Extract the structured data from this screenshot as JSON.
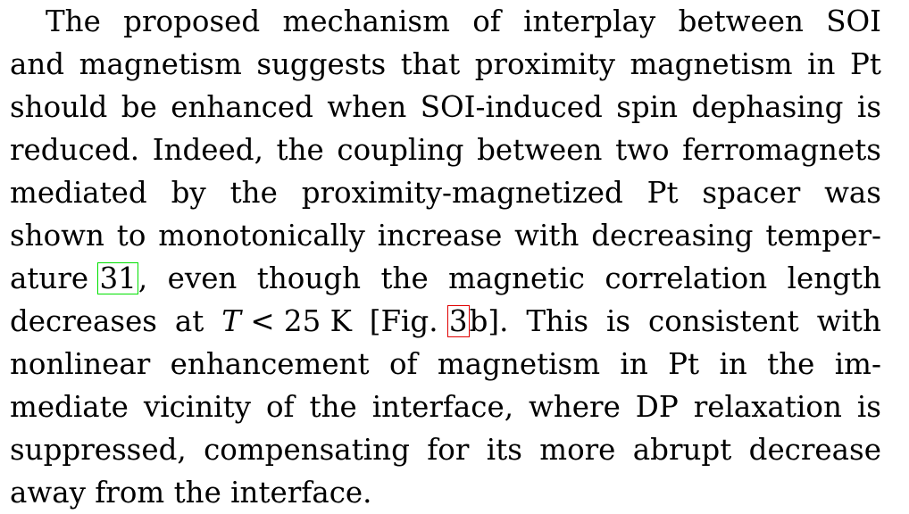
{
  "paragraph": {
    "lines": [
      [
        "The",
        "proposed",
        "mechanism",
        "of",
        "interplay",
        "between",
        "SOI"
      ],
      [
        "and",
        "magnetism",
        "suggests",
        "that",
        "proximity",
        "magnetism",
        "in",
        "Pt"
      ],
      [
        "should",
        "be",
        "enhanced",
        "when",
        "SOI-induced",
        "spin",
        "dephasing",
        "is"
      ],
      [
        "reduced.",
        "Indeed,",
        "the",
        "coupling",
        "between",
        "two",
        "ferromagnets"
      ],
      [
        "mediated",
        "by",
        "the",
        "proximity-magnetized",
        "Pt",
        "spacer",
        "was"
      ],
      [
        "shown",
        "to",
        "monotonically",
        "increase",
        "with",
        "decreasing",
        "temper-"
      ],
      {
        "pre": "ature",
        "citation": "31",
        "post_punct": ",",
        "words": [
          "even",
          "though",
          "the",
          "magnetic",
          "correlation",
          "length"
        ]
      },
      {
        "w1": "decreases",
        "w2": "at",
        "math_var": "T",
        "math_rest": "< 25 K",
        "fig_pre": "[Fig.",
        "fig_ref": "3",
        "fig_post": "b].",
        "words": [
          "This",
          "is",
          "consistent",
          "with"
        ]
      },
      [
        "nonlinear",
        "enhancement",
        "of",
        "magnetism",
        "in",
        "Pt",
        "in",
        "the",
        "im-"
      ],
      [
        "mediate",
        "vicinity",
        "of",
        "the",
        "interface,",
        "where",
        "DP",
        "relaxation",
        "is"
      ],
      [
        "suppressed,",
        "compensating",
        "for",
        "its",
        "more",
        "abrupt",
        "decrease"
      ],
      [
        "away",
        "from",
        "the",
        "interface."
      ]
    ]
  },
  "colors": {
    "text": "#000000",
    "citation_box": "#00e000",
    "figure_ref_box": "#e00000"
  }
}
